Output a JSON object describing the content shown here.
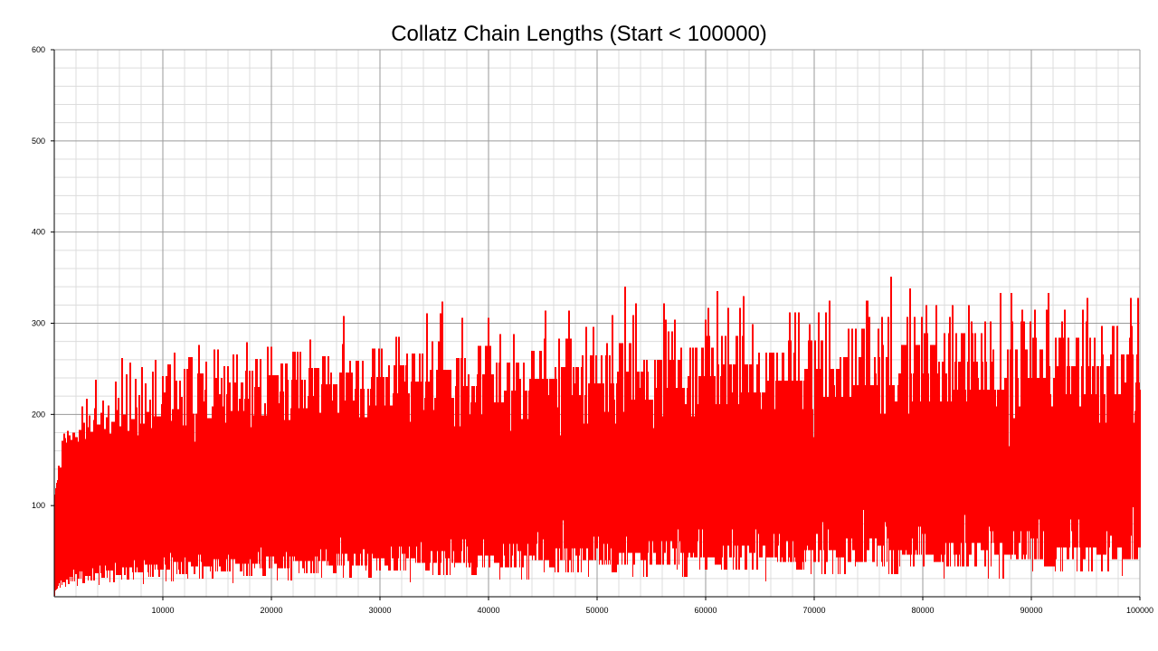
{
  "chart_data": {
    "type": "line",
    "title": "Collatz Chain Lengths (Start < 100000)",
    "xlabel": "",
    "ylabel": "",
    "xlim": [
      0,
      100000
    ],
    "ylim": [
      0,
      600
    ],
    "x_ticks": [
      10000,
      20000,
      30000,
      40000,
      50000,
      60000,
      70000,
      80000,
      90000,
      100000
    ],
    "y_ticks": [
      100,
      200,
      300,
      400,
      500,
      600
    ],
    "x_tick_labels": [
      "10000",
      "20000",
      "30000",
      "40000",
      "50000",
      "60000",
      "70000",
      "80000",
      "90000",
      "100000"
    ],
    "y_tick_labels": [
      "100",
      "200",
      "300",
      "400",
      "500",
      "600"
    ],
    "grid": true,
    "legend": "none",
    "series": [
      {
        "color": "#ff0000",
        "x_start": 1,
        "x_end": 99999,
        "notable_values": [
          {
            "x": 77031,
            "y": 351
          },
          {
            "x": 52527,
            "y": 340
          },
          {
            "x": 60975,
            "y": 335
          }
        ]
      }
    ]
  }
}
